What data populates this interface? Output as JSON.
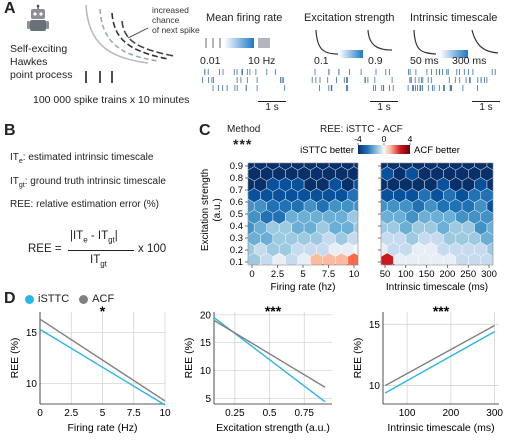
{
  "panels": {
    "A": {
      "letter": "A",
      "model_label": [
        "Self-exciting",
        "Hawkes",
        "point process"
      ],
      "annotation": [
        "increased",
        "chance",
        "of next spike"
      ],
      "simulation_text": "100 000 spike trains x 10 minutes",
      "params": [
        {
          "title": "Mean firing rate",
          "min": "0.01",
          "max": "10 Hz"
        },
        {
          "title": "Excitation strength",
          "min": "0.1",
          "max": "0.9"
        },
        {
          "title": "Intrinsic timescale",
          "min": "50 ms",
          "max": "300 ms"
        }
      ],
      "scale_bar": "1 s",
      "gradient_colors": [
        "#ffffff",
        "#1f78c8"
      ]
    },
    "B": {
      "letter": "B",
      "def_ite": "IT",
      "def_ite_sub": "e",
      "def_ite_rest": ": estimated intrinsic timescale",
      "def_itgt": "IT",
      "def_itgt_sub": "gt",
      "def_itgt_rest": ": ground truth intrinsic timescale",
      "def_ree": "REE: relative estimation error (%)",
      "formula_lhs": "REE =",
      "formula_num": "|IT",
      "formula_num_sub1": "e",
      "formula_num_mid": " - IT",
      "formula_num_sub2": "gt",
      "formula_num_end": "|",
      "formula_den": "IT",
      "formula_den_sub": "gt",
      "formula_rhs": "x 100"
    },
    "C": {
      "letter": "C",
      "method_label": "Method",
      "significance": "***",
      "colorbar_title": "REE: iSTTC - ACF",
      "colorbar_ticks": [
        "-4",
        "0",
        "4"
      ],
      "colorbar_left": "iSTTC better",
      "colorbar_right": "ACF better",
      "colorbar_colors": [
        "#08306b",
        "#2171b5",
        "#9ecae1",
        "#f7f7f7",
        "#fcbba1",
        "#cb181d",
        "#67000d"
      ],
      "ylabel": [
        "Excitation strength",
        "(a.u.)"
      ],
      "yticks": [
        "0.1",
        "0.2",
        "0.3",
        "0.4",
        "0.5",
        "0.6",
        "0.7",
        "0.8",
        "0.9"
      ],
      "left_xlabel": "Firing rate (hz)",
      "left_xticks": [
        "0",
        "2.5",
        "5",
        "7.5",
        "10"
      ],
      "right_xlabel": "Intrinsic timescale (ms)",
      "right_xticks": [
        "50",
        "100",
        "150",
        "200",
        "250",
        "300"
      ]
    },
    "D": {
      "letter": "D",
      "legend": [
        {
          "name": "iSTTC",
          "color": "#29b6e8"
        },
        {
          "name": "ACF",
          "color": "#808080"
        }
      ]
    }
  },
  "chart_data": [
    {
      "type": "line",
      "significance": "*",
      "xlabel": "Firing rate (Hz)",
      "ylabel": "REE (%)",
      "xlim": [
        0,
        10
      ],
      "ylim": [
        8,
        17
      ],
      "xticks": [
        "0",
        "2.5",
        "5",
        "7.5",
        "10"
      ],
      "yticks": [
        "10",
        "15"
      ],
      "series": [
        {
          "name": "iSTTC",
          "x": [
            0,
            10
          ],
          "y": [
            15.3,
            7.9
          ]
        },
        {
          "name": "ACF",
          "x": [
            0,
            10
          ],
          "y": [
            16.3,
            8.3
          ]
        }
      ]
    },
    {
      "type": "line",
      "significance": "***",
      "xlabel": "Excitation strength (a.u.)",
      "ylabel": "REE (%)",
      "xlim": [
        0.1,
        0.95
      ],
      "ylim": [
        4,
        20.5
      ],
      "xticks": [
        "0.25",
        "0.5",
        "0.75"
      ],
      "yticks": [
        "5",
        "10",
        "15",
        "20"
      ],
      "series": [
        {
          "name": "iSTTC",
          "x": [
            0.1,
            0.9
          ],
          "y": [
            19.5,
            4.4
          ]
        },
        {
          "name": "ACF",
          "x": [
            0.1,
            0.9
          ],
          "y": [
            19.0,
            7.0
          ]
        }
      ]
    },
    {
      "type": "line",
      "significance": "***",
      "xlabel": "Intrinsic timescale (ms)",
      "ylabel": "REE (%)",
      "xlim": [
        45,
        310
      ],
      "ylim": [
        8.5,
        16
      ],
      "xticks": [
        "100",
        "200",
        "300"
      ],
      "yticks": [
        "10",
        "15"
      ],
      "series": [
        {
          "name": "iSTTC",
          "x": [
            50,
            300
          ],
          "y": [
            9.4,
            14.4
          ]
        },
        {
          "name": "ACF",
          "x": [
            50,
            300
          ],
          "y": [
            10.0,
            14.9
          ]
        }
      ]
    }
  ]
}
